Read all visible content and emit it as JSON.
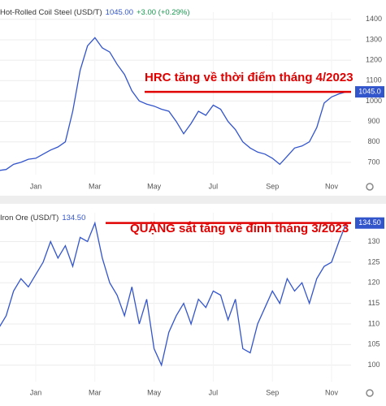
{
  "chart_data": [
    {
      "type": "line",
      "title": "Hot-Rolled Coil Steel (USD/T)",
      "last_price": "1045.00",
      "change": "+3.00 (+0.29%)",
      "price_tag": "1045.0",
      "annotation": "HRC tăng về thời điểm tháng 4/2023",
      "categories": [
        null,
        null,
        null,
        null,
        null,
        "Jan",
        null,
        null,
        null,
        null,
        null,
        null,
        null,
        "Mar",
        null,
        null,
        null,
        null,
        null,
        null,
        null,
        "May",
        null,
        null,
        null,
        null,
        null,
        null,
        null,
        "Jul",
        null,
        null,
        null,
        null,
        null,
        null,
        null,
        "Sep",
        null,
        null,
        null,
        null,
        null,
        null,
        null,
        "Nov",
        null,
        null
      ],
      "series": [
        {
          "name": "Hot-Rolled Coil Steel",
          "color": "#3355cc",
          "values": [
            660,
            665,
            690,
            700,
            715,
            720,
            740,
            760,
            775,
            800,
            950,
            1150,
            1270,
            1310,
            1260,
            1240,
            1180,
            1130,
            1050,
            1000,
            985,
            975,
            960,
            950,
            900,
            840,
            890,
            950,
            930,
            980,
            960,
            900,
            860,
            800,
            770,
            750,
            740,
            720,
            690,
            730,
            770,
            780,
            800,
            870,
            990,
            1020,
            1035,
            1045
          ]
        }
      ],
      "ylim": [
        640,
        1435
      ],
      "yticks": [
        700,
        800,
        900,
        1000,
        1100,
        1200,
        1300,
        1400
      ],
      "grid": true,
      "annotation_color": "#e00000"
    },
    {
      "type": "line",
      "title": "Iron Ore (USD/T)",
      "last_price": "134.50",
      "price_tag": "134.50",
      "annotation": "QUẶNG sắt tăng về đỉnh tháng 3/2023",
      "categories": [
        null,
        null,
        null,
        null,
        null,
        "Jan",
        null,
        null,
        null,
        null,
        null,
        null,
        null,
        "Mar",
        null,
        null,
        null,
        null,
        null,
        null,
        null,
        "May",
        null,
        null,
        null,
        null,
        null,
        null,
        null,
        "Jul",
        null,
        null,
        null,
        null,
        null,
        null,
        null,
        "Sep",
        null,
        null,
        null,
        null,
        null,
        null,
        null,
        "Nov",
        null,
        null
      ],
      "series": [
        {
          "name": "Iron Ore",
          "color": "#3355cc",
          "values": [
            109,
            112,
            118,
            121,
            119,
            122,
            125,
            130,
            126,
            129,
            124,
            131,
            130,
            134.5,
            126,
            120,
            117,
            112,
            119,
            110,
            116,
            104,
            100,
            108,
            112,
            115,
            110,
            116,
            114,
            118,
            117,
            111,
            116,
            104,
            103,
            110,
            114,
            118,
            115,
            121,
            118,
            120,
            115,
            121,
            124,
            125,
            130,
            134.5
          ]
        }
      ],
      "ylim": [
        96,
        137
      ],
      "yticks": [
        100,
        105,
        110,
        115,
        120,
        125,
        130
      ],
      "grid": true,
      "annotation_color": "#e00000"
    }
  ]
}
